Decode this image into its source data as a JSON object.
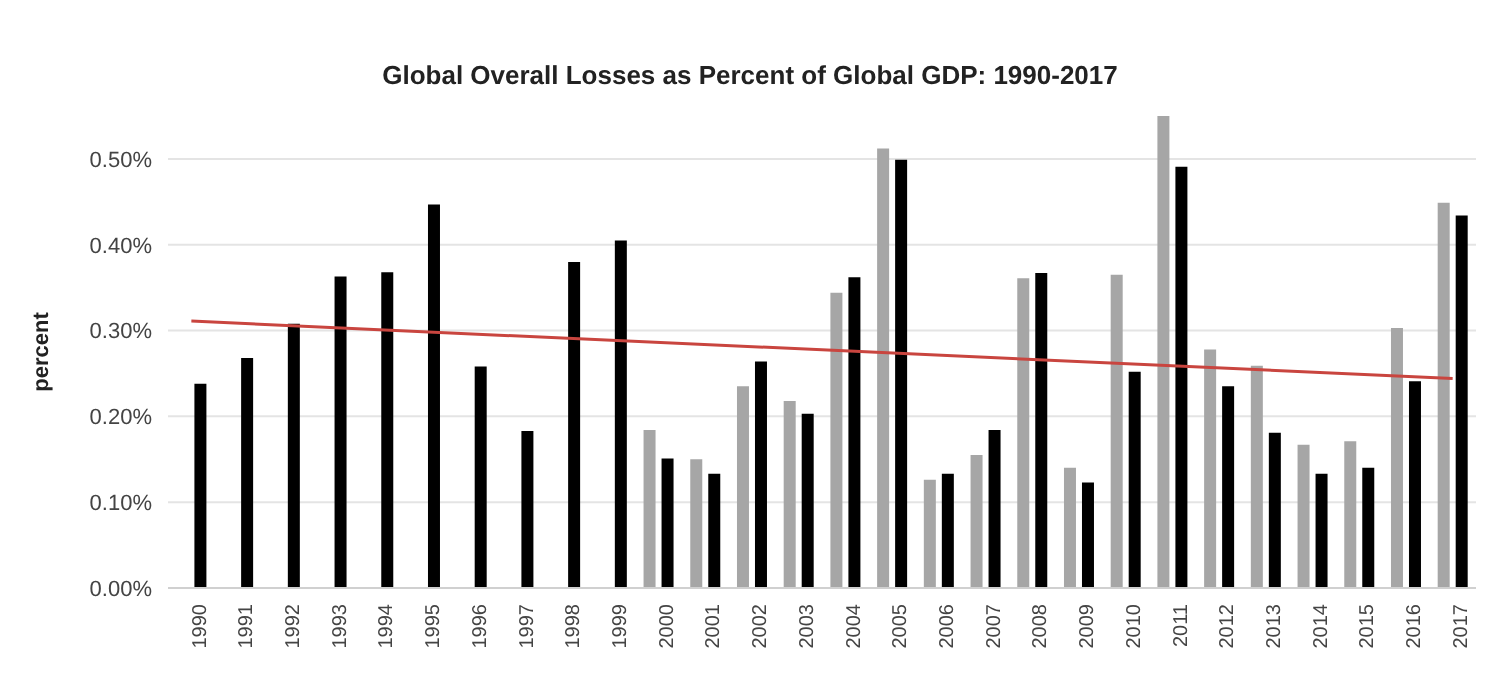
{
  "chart_data": {
    "type": "bar",
    "title": "Global Overall Losses as Percent of Global GDP: 1990-2017",
    "ylabel": "percent",
    "categories": [
      "1990",
      "1991",
      "1992",
      "1993",
      "1994",
      "1995",
      "1996",
      "1997",
      "1998",
      "1999",
      "2000",
      "2001",
      "2002",
      "2003",
      "2004",
      "2005",
      "2006",
      "2007",
      "2008",
      "2009",
      "2010",
      "2011",
      "2012",
      "2013",
      "2014",
      "2015",
      "2016",
      "2017"
    ],
    "series": [
      {
        "color": "#a6a6a6",
        "values": [
          null,
          null,
          null,
          null,
          null,
          null,
          null,
          null,
          null,
          null,
          0.184,
          0.15,
          0.235,
          0.218,
          0.344,
          0.512,
          0.126,
          0.155,
          0.361,
          0.14,
          0.365,
          0.55,
          0.278,
          0.259,
          0.167,
          0.171,
          0.303,
          0.449
        ]
      },
      {
        "color": "#000000",
        "values": [
          0.238,
          0.268,
          0.308,
          0.363,
          0.368,
          0.447,
          0.258,
          0.183,
          0.38,
          0.405,
          0.151,
          0.133,
          0.264,
          0.203,
          0.362,
          0.499,
          0.133,
          0.184,
          0.367,
          0.123,
          0.252,
          0.491,
          0.235,
          0.181,
          0.133,
          0.14,
          0.241,
          0.434
        ]
      },
      {
        "type": "line",
        "color": "#c9453f",
        "values": [
          0.311,
          null,
          null,
          null,
          null,
          null,
          null,
          null,
          null,
          null,
          null,
          null,
          null,
          null,
          null,
          null,
          null,
          null,
          null,
          null,
          null,
          null,
          null,
          null,
          null,
          null,
          null,
          0.244
        ]
      }
    ],
    "ylim": [
      0,
      0.55
    ],
    "yticks": [
      {
        "value": 0,
        "label": "0.00%"
      },
      {
        "value": 0.1,
        "label": "0.10%"
      },
      {
        "value": 0.2,
        "label": "0.20%"
      },
      {
        "value": 0.3,
        "label": "0.30%"
      },
      {
        "value": 0.4,
        "label": "0.40%"
      },
      {
        "value": 0.5,
        "label": "0.50%"
      }
    ],
    "grid": "y",
    "legend": false
  }
}
